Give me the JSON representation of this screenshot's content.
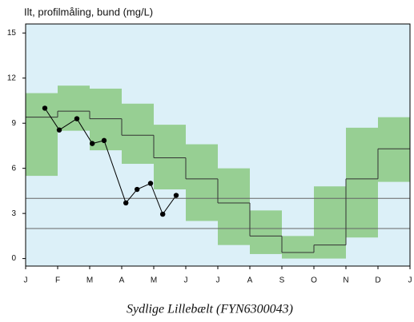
{
  "chart_data": {
    "type": "band-line",
    "title": "Ilt, profilmåling, bund (mg/L)",
    "caption": "Sydlige Lillebælt (FYN6300043)",
    "xlim": [
      0,
      12
    ],
    "xticks": [
      {
        "value": 0,
        "label": "J"
      },
      {
        "value": 1,
        "label": "F"
      },
      {
        "value": 2,
        "label": "M"
      },
      {
        "value": 3,
        "label": "A"
      },
      {
        "value": 4,
        "label": "M"
      },
      {
        "value": 5,
        "label": "J"
      },
      {
        "value": 6,
        "label": "J"
      },
      {
        "value": 7,
        "label": "A"
      },
      {
        "value": 8,
        "label": "S"
      },
      {
        "value": 9,
        "label": "O"
      },
      {
        "value": 10,
        "label": "N"
      },
      {
        "value": 11,
        "label": "D"
      },
      {
        "value": 12,
        "label": "J"
      }
    ],
    "ylim": [
      -0.5,
      15.6
    ],
    "yticks": [
      0,
      3,
      6,
      9,
      12,
      15
    ],
    "background": "#dcf0f8",
    "band": {
      "color": "#97cf93",
      "low": [
        5.5,
        8.5,
        7.2,
        6.3,
        4.6,
        2.5,
        0.9,
        0.3,
        0.0,
        0.0,
        1.4,
        5.1
      ],
      "high": [
        11.0,
        11.5,
        11.3,
        10.3,
        8.9,
        7.6,
        6.0,
        3.2,
        1.5,
        4.8,
        8.7,
        9.4
      ]
    },
    "median": {
      "color": "#333333",
      "values": [
        9.4,
        9.8,
        9.3,
        8.2,
        6.7,
        5.3,
        3.7,
        1.5,
        0.4,
        0.9,
        5.3,
        7.3
      ]
    },
    "observed": {
      "color": "#000000",
      "x": [
        0.6,
        1.05,
        1.6,
        2.08,
        2.45,
        3.13,
        3.48,
        3.9,
        4.28,
        4.7
      ],
      "values": [
        10.0,
        8.55,
        9.3,
        7.65,
        7.85,
        3.7,
        4.6,
        5.0,
        2.95,
        4.2
      ]
    },
    "hlines": {
      "color": "#666666",
      "values": [
        4,
        2
      ]
    }
  }
}
